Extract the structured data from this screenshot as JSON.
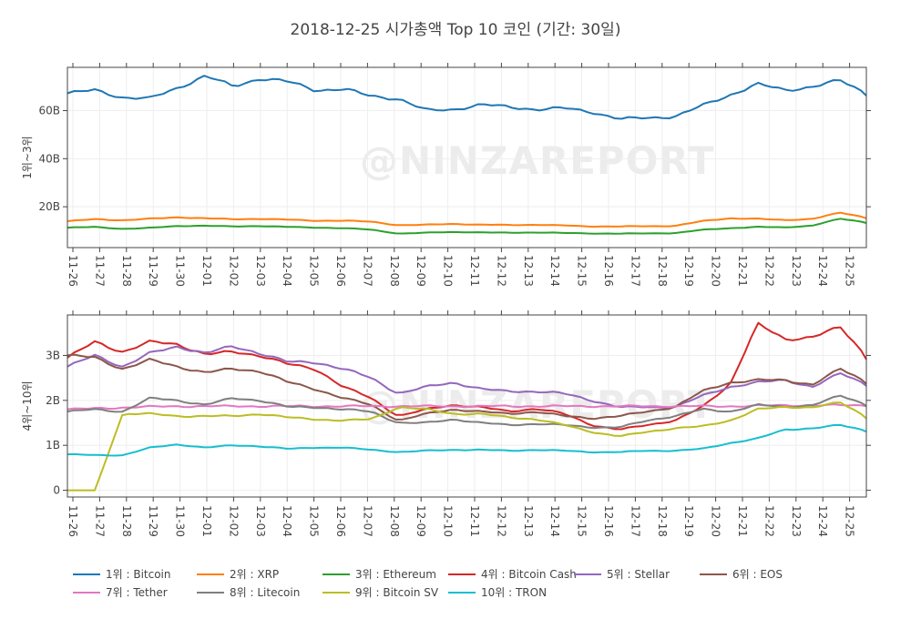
{
  "chart_title": "2018-12-25 시가총액 Top 10 코인 (기간: 30일)",
  "watermark_text": "@NINZAREPORT",
  "chart_data": [
    {
      "type": "line",
      "ylabel": "1위~3위",
      "ylim": [
        3000000000,
        78000000000
      ],
      "yticks": [
        {
          "value": 20000000000,
          "label": "20B"
        },
        {
          "value": 40000000000,
          "label": "40B"
        },
        {
          "value": 60000000000,
          "label": "60B"
        }
      ],
      "grid": true,
      "x_tick_labels": [
        "11-26",
        "11-27",
        "11-28",
        "11-29",
        "11-30",
        "12-01",
        "12-02",
        "12-03",
        "12-04",
        "12-05",
        "12-06",
        "12-07",
        "12-08",
        "12-09",
        "12-10",
        "12-11",
        "12-12",
        "12-13",
        "12-14",
        "12-15",
        "12-16",
        "12-17",
        "12-18",
        "12-19",
        "12-20",
        "12-21",
        "12-22",
        "12-23",
        "12-24",
        "12-25"
      ],
      "x_start": "11-26",
      "x_end": "12-25",
      "series": [
        {
          "name": "1위 : Bitcoin",
          "color": "#1f77b4",
          "anchors": [
            67.2,
            68.5,
            65.5,
            65.0,
            69.5,
            74.5,
            70.0,
            73.5,
            72.0,
            68.5,
            69.0,
            66.0,
            65.0,
            60.0,
            60.5,
            62.5,
            61.5,
            60.5,
            61.0,
            59.5,
            56.5,
            57.0,
            57.5,
            62.0,
            66.5,
            71.0,
            68.5,
            70.0,
            72.5,
            67.0
          ]
        },
        {
          "name": "2위 : XRP",
          "color": "#ff7f0e",
          "anchors": [
            14.0,
            14.8,
            14.4,
            15.0,
            15.6,
            15.2,
            14.8,
            15.0,
            14.6,
            14.2,
            14.2,
            13.8,
            12.3,
            12.5,
            12.9,
            12.5,
            12.4,
            12.5,
            12.2,
            11.8,
            11.8,
            11.9,
            12.0,
            14.0,
            15.2,
            15.0,
            14.4,
            15.0,
            17.5,
            15.4
          ]
        },
        {
          "name": "3위 : Ethereum",
          "color": "#2ca02c",
          "anchors": [
            11.3,
            11.6,
            10.8,
            11.2,
            12.0,
            12.1,
            11.8,
            12.0,
            11.6,
            11.3,
            11.1,
            10.5,
            8.8,
            9.2,
            9.5,
            9.3,
            9.2,
            9.3,
            9.1,
            8.9,
            8.8,
            8.9,
            9.0,
            10.4,
            11.1,
            11.6,
            11.4,
            12.2,
            15.0,
            13.4
          ]
        }
      ]
    },
    {
      "type": "line",
      "ylabel": "4위~10위",
      "ylim": [
        -150000000,
        3900000000
      ],
      "yticks": [
        {
          "value": 0,
          "label": "0"
        },
        {
          "value": 1000000000,
          "label": "1B"
        },
        {
          "value": 2000000000,
          "label": "2B"
        },
        {
          "value": 3000000000,
          "label": "3B"
        }
      ],
      "grid": true,
      "x_tick_labels": [
        "11-26",
        "11-27",
        "11-28",
        "11-29",
        "11-30",
        "12-01",
        "12-02",
        "12-03",
        "12-04",
        "12-05",
        "12-06",
        "12-07",
        "12-08",
        "12-09",
        "12-10",
        "12-11",
        "12-12",
        "12-13",
        "12-14",
        "12-15",
        "12-16",
        "12-17",
        "12-18",
        "12-19",
        "12-20",
        "12-21",
        "12-22",
        "12-23",
        "12-24",
        "12-25"
      ],
      "x_start": "11-26",
      "x_end": "12-25",
      "series": [
        {
          "name": "4위 : Bitcoin Cash",
          "color": "#d62728",
          "anchors": [
            2.95,
            3.3,
            3.08,
            3.3,
            3.25,
            3.02,
            3.08,
            3.0,
            2.8,
            2.7,
            2.3,
            2.05,
            1.65,
            1.8,
            1.9,
            1.85,
            1.75,
            1.82,
            1.7,
            1.45,
            1.35,
            1.45,
            1.55,
            1.85,
            2.35,
            3.7,
            3.35,
            3.42,
            3.62,
            2.95
          ]
        },
        {
          "name": "5위 : Stellar",
          "color": "#9467bd",
          "anchors": [
            2.75,
            3.0,
            2.75,
            3.05,
            3.2,
            3.05,
            3.2,
            3.05,
            2.85,
            2.85,
            2.7,
            2.5,
            2.15,
            2.3,
            2.4,
            2.25,
            2.2,
            2.2,
            2.15,
            2.0,
            1.85,
            1.85,
            1.85,
            2.1,
            2.3,
            2.4,
            2.45,
            2.3,
            2.6,
            2.35
          ]
        },
        {
          "name": "6위 : EOS",
          "color": "#8c564b",
          "anchors": [
            3.0,
            2.95,
            2.7,
            2.9,
            2.75,
            2.62,
            2.7,
            2.65,
            2.4,
            2.25,
            2.05,
            1.9,
            1.55,
            1.7,
            1.8,
            1.75,
            1.7,
            1.75,
            1.65,
            1.6,
            1.65,
            1.75,
            1.85,
            2.2,
            2.4,
            2.45,
            2.45,
            2.35,
            2.7,
            2.4
          ]
        },
        {
          "name": "7위 : Tether",
          "color": "#e377c2",
          "anchors": [
            1.8,
            1.82,
            1.84,
            1.86,
            1.87,
            1.87,
            1.87,
            1.87,
            1.87,
            1.87,
            1.87,
            1.87,
            1.87,
            1.87,
            1.87,
            1.87,
            1.87,
            1.87,
            1.87,
            1.87,
            1.87,
            1.87,
            1.87,
            1.87,
            1.87,
            1.88,
            1.89,
            1.89,
            1.89,
            1.89
          ]
        },
        {
          "name": "8위 : Litecoin",
          "color": "#7f7f7f",
          "anchors": [
            1.75,
            1.8,
            1.75,
            2.05,
            2.0,
            1.9,
            2.05,
            2.0,
            1.85,
            1.85,
            1.8,
            1.75,
            1.5,
            1.5,
            1.58,
            1.5,
            1.45,
            1.48,
            1.45,
            1.4,
            1.4,
            1.55,
            1.65,
            1.8,
            1.75,
            1.9,
            1.85,
            1.9,
            2.1,
            1.9
          ]
        },
        {
          "name": "9위 : Bitcoin SV",
          "color": "#bcbd22",
          "anchors": [
            0.0,
            0.0,
            1.7,
            1.7,
            1.65,
            1.65,
            1.65,
            1.7,
            1.62,
            1.58,
            1.55,
            1.58,
            1.85,
            1.8,
            1.7,
            1.7,
            1.62,
            1.58,
            1.45,
            1.3,
            1.2,
            1.3,
            1.38,
            1.42,
            1.55,
            1.8,
            1.85,
            1.85,
            1.95,
            1.62
          ]
        },
        {
          "name": "10위 : TRON",
          "color": "#17becf",
          "anchors": [
            0.8,
            0.78,
            0.78,
            0.95,
            1.02,
            0.95,
            1.0,
            0.98,
            0.92,
            0.95,
            0.95,
            0.9,
            0.85,
            0.88,
            0.9,
            0.9,
            0.88,
            0.9,
            0.88,
            0.85,
            0.85,
            0.88,
            0.88,
            0.92,
            1.05,
            1.15,
            1.35,
            1.38,
            1.45,
            1.32
          ]
        }
      ]
    }
  ]
}
